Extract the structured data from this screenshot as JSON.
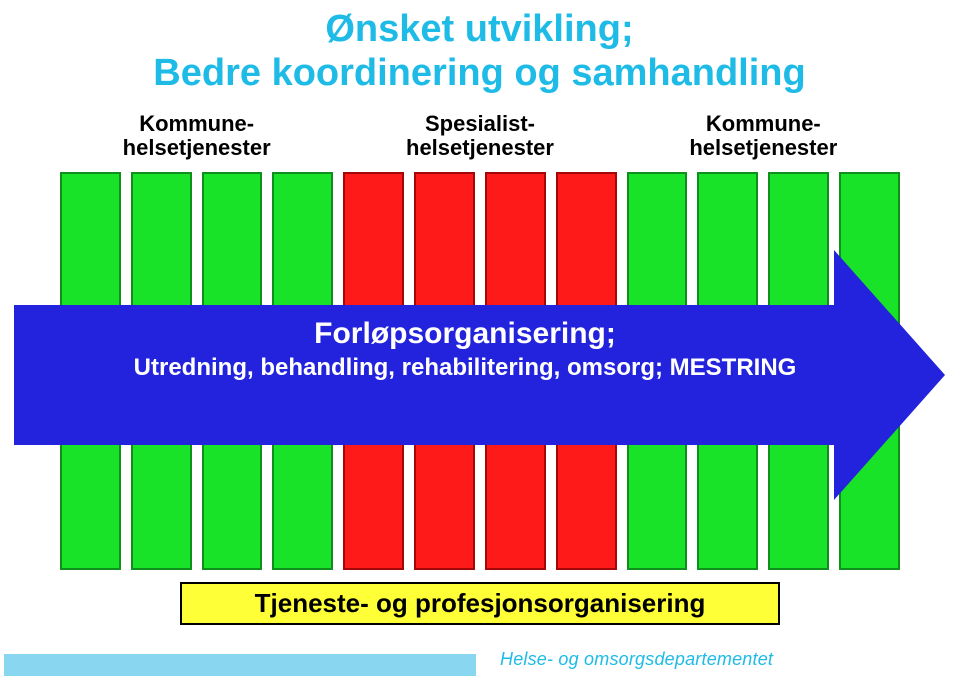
{
  "title": {
    "line1": "Ønsket utvikling;",
    "line2": "Bedre koordinering og samhandling",
    "color": "#1ebbe7",
    "fontsize": 38
  },
  "services": [
    {
      "line1": "Kommune-",
      "line2": "helsetjenester",
      "color": "#000000",
      "fontsize": 22
    },
    {
      "line1": "Spesialist-",
      "line2": "helsetjenester",
      "color": "#000000",
      "fontsize": 22
    },
    {
      "line1": "Kommune-",
      "line2": "helsetjenester",
      "color": "#000000",
      "fontsize": 22
    }
  ],
  "bars": {
    "groups": [
      {
        "fill": "#19e328",
        "border": "#0f8f1b",
        "count": 4
      },
      {
        "fill": "#ff1a1a",
        "border": "#a30707",
        "count": 4
      },
      {
        "fill": "#19e328",
        "border": "#0f8f1b",
        "count": 4
      }
    ]
  },
  "arrow": {
    "fill": "#2323dd",
    "text_main": "Forløpsorganisering;",
    "text_sub": "Utredning, behandling, rehabilitering, omsorg; MESTRING",
    "main_fontsize": 30,
    "sub_fontsize": 24
  },
  "bottom": {
    "label": "Tjeneste- og profesjonsorganisering",
    "bg": "#ffff38",
    "fontsize": 26
  },
  "footer": {
    "text": "Helse- og omsorgsdepartementet",
    "color": "#1ebbe7",
    "fontsize": 18,
    "strip_color": "#88d6f0"
  }
}
